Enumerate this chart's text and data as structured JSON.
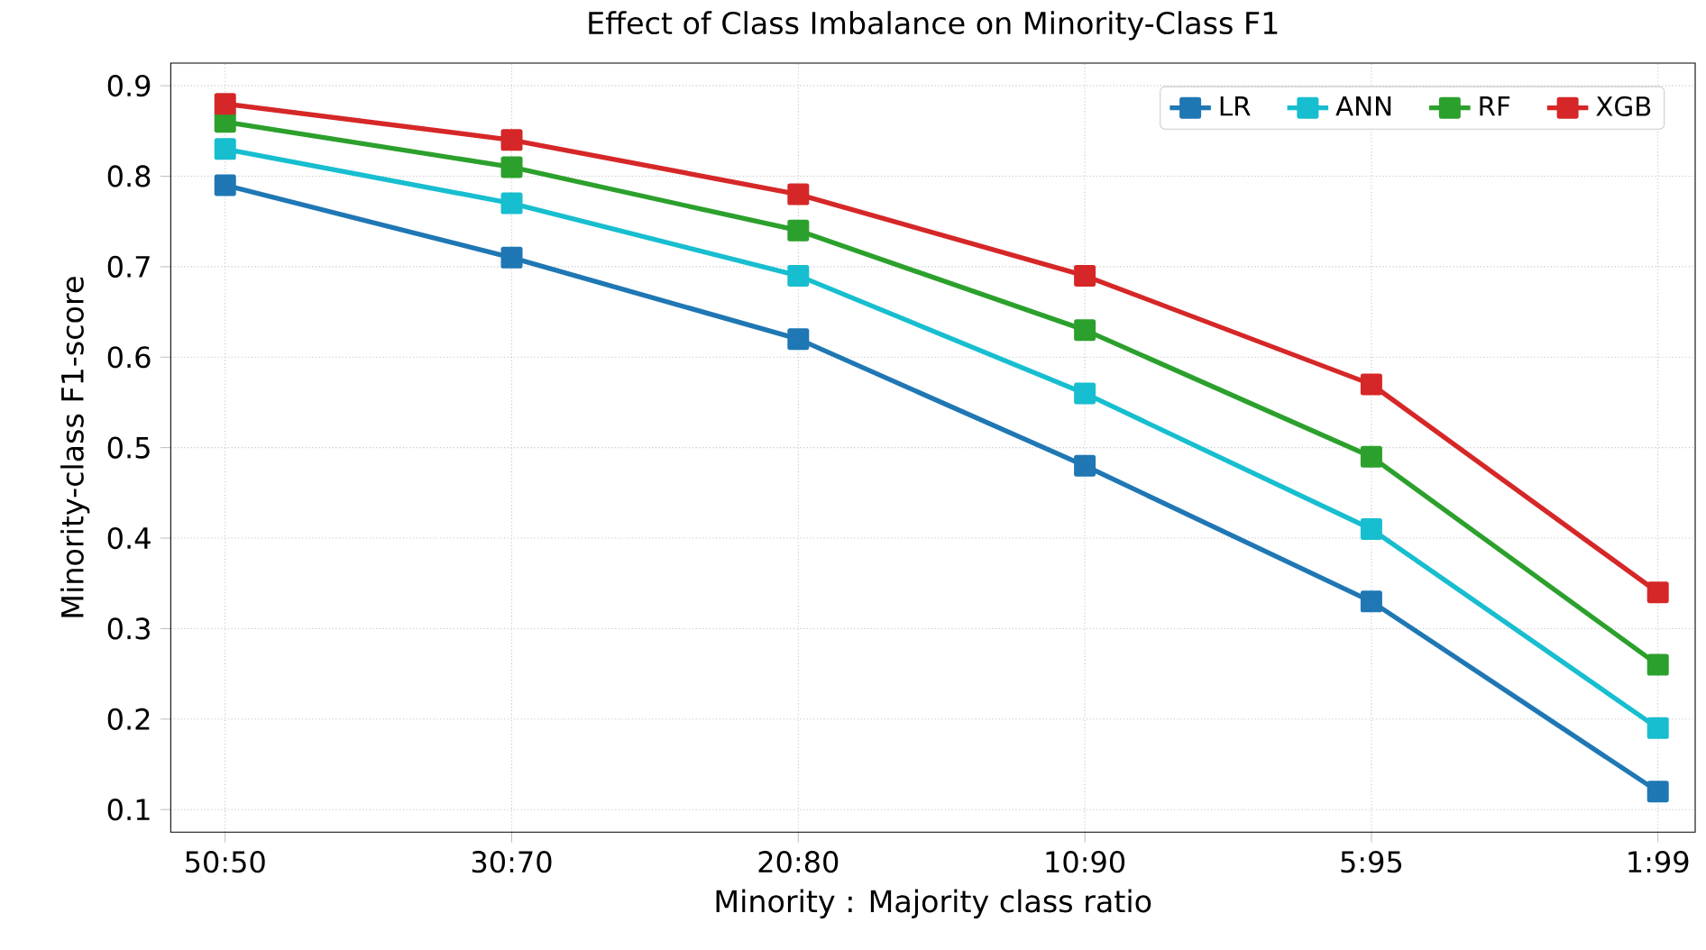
{
  "chart_data": {
    "type": "line",
    "title": "Effect of Class Imbalance on Minority-Class F1",
    "xlabel": "Minority : Majority class ratio",
    "ylabel": "Minority-class F1-score",
    "categories": [
      "50:50",
      "30:70",
      "20:80",
      "10:90",
      "5:95",
      "1:99"
    ],
    "series": [
      {
        "name": "LR",
        "color": "#1f77b4",
        "values": [
          0.79,
          0.71,
          0.62,
          0.48,
          0.33,
          0.12
        ]
      },
      {
        "name": "ANN",
        "color": "#17becf",
        "values": [
          0.83,
          0.77,
          0.69,
          0.56,
          0.41,
          0.19
        ]
      },
      {
        "name": "RF",
        "color": "#2ca02c",
        "values": [
          0.86,
          0.81,
          0.74,
          0.63,
          0.49,
          0.26
        ]
      },
      {
        "name": "XGB",
        "color": "#d62728",
        "values": [
          0.88,
          0.84,
          0.78,
          0.69,
          0.57,
          0.34
        ]
      }
    ],
    "ylim": [
      0.075,
      0.925
    ],
    "yticks": [
      0.1,
      0.2,
      0.3,
      0.4,
      0.5,
      0.6,
      0.7,
      0.8,
      0.9
    ],
    "grid": true,
    "legend": "top right",
    "marker": "square",
    "line_style": "solid"
  }
}
